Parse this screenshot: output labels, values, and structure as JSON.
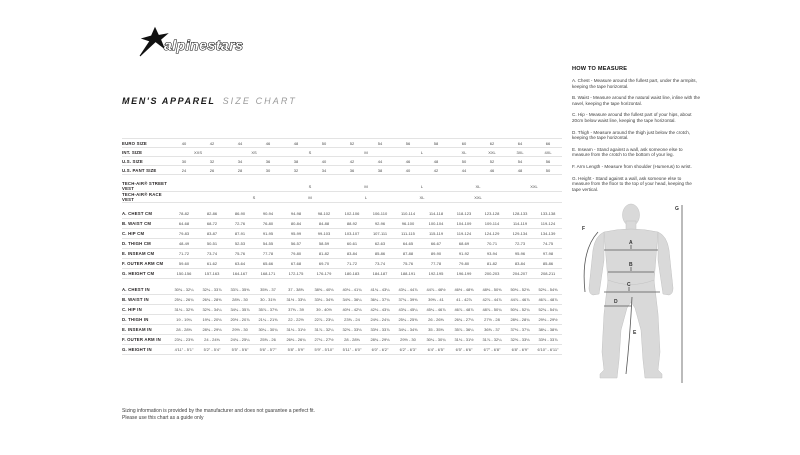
{
  "logo": {
    "name": "alpinestars"
  },
  "title": {
    "main": "MEN'S APPAREL",
    "sub": "SIZE CHART"
  },
  "table": {
    "sections": [
      {
        "name": "sizes",
        "rows": [
          {
            "label": "EURO SIZE",
            "cells": [
              [
                "40"
              ],
              [
                "42"
              ],
              [
                "44"
              ],
              [
                "46"
              ],
              [
                "48"
              ],
              [
                "50"
              ],
              [
                "52"
              ],
              [
                "54"
              ],
              [
                "56"
              ],
              [
                "58"
              ],
              [
                "60"
              ],
              [
                "62"
              ],
              [
                "64"
              ],
              [
                "66"
              ]
            ]
          },
          {
            "label": "INT. SIZE",
            "cells": [
              [
                "XXS",
                2
              ],
              [
                "XS",
                2
              ],
              [
                "S",
                2
              ],
              [
                "M",
                2
              ],
              [
                "L",
                2
              ],
              [
                "XL"
              ],
              [
                "XXL"
              ],
              [
                "3XL"
              ],
              [
                "4XL"
              ]
            ]
          },
          {
            "label": "U.S. SIZE",
            "cells": [
              [
                "30"
              ],
              [
                "32"
              ],
              [
                "34"
              ],
              [
                "36"
              ],
              [
                "38"
              ],
              [
                "40"
              ],
              [
                "42"
              ],
              [
                "44"
              ],
              [
                "46"
              ],
              [
                "48"
              ],
              [
                "50"
              ],
              [
                "52"
              ],
              [
                "54"
              ],
              [
                "56"
              ]
            ]
          },
          {
            "label": "U.S. PANT SIZE",
            "cells": [
              [
                "24"
              ],
              [
                "26"
              ],
              [
                "28"
              ],
              [
                "30"
              ],
              [
                "32"
              ],
              [
                "34"
              ],
              [
                "36"
              ],
              [
                "38"
              ],
              [
                "40"
              ],
              [
                "42"
              ],
              [
                "44"
              ],
              [
                "46"
              ],
              [
                "48"
              ],
              [
                "50"
              ]
            ]
          }
        ]
      },
      {
        "name": "vests",
        "rows": [
          {
            "label": "TECH-AIR® STREET VEST",
            "cells": [
              [
                "",
                4
              ],
              [
                "S",
                2
              ],
              [
                "M",
                2
              ],
              [
                "L",
                2
              ],
              [
                "XL",
                2
              ],
              [
                "XXL",
                2
              ]
            ]
          },
          {
            "label": "TECH-AIR® RACE VEST",
            "cells": [
              [
                "",
                2
              ],
              [
                "S",
                2
              ],
              [
                "M",
                2
              ],
              [
                "L",
                2
              ],
              [
                "XL",
                2
              ],
              [
                "XXL",
                2
              ],
              [
                "",
                2
              ]
            ]
          }
        ]
      },
      {
        "name": "cm",
        "rows": [
          {
            "label": "A. CHEST CM",
            "cells": [
              [
                "78-82"
              ],
              [
                "82-86"
              ],
              [
                "86-90"
              ],
              [
                "90-94"
              ],
              [
                "94-98"
              ],
              [
                "98-102"
              ],
              [
                "102-106"
              ],
              [
                "106-110"
              ],
              [
                "110-114"
              ],
              [
                "114-118"
              ],
              [
                "118-123"
              ],
              [
                "123-128"
              ],
              [
                "128-133"
              ],
              [
                "133-138"
              ]
            ]
          },
          {
            "label": "B. WAIST CM",
            "cells": [
              [
                "64-68"
              ],
              [
                "68-72"
              ],
              [
                "72-76"
              ],
              [
                "76-80"
              ],
              [
                "80-84"
              ],
              [
                "84-88"
              ],
              [
                "88-92"
              ],
              [
                "92-96"
              ],
              [
                "96-100"
              ],
              [
                "100-104"
              ],
              [
                "104-109"
              ],
              [
                "109-114"
              ],
              [
                "114-119"
              ],
              [
                "119-124"
              ]
            ]
          },
          {
            "label": "C. HIP CM",
            "cells": [
              [
                "79-83"
              ],
              [
                "83-87"
              ],
              [
                "87-91"
              ],
              [
                "91-95"
              ],
              [
                "95-99"
              ],
              [
                "99-103"
              ],
              [
                "103-107"
              ],
              [
                "107-111"
              ],
              [
                "111-115"
              ],
              [
                "115-119"
              ],
              [
                "119-124"
              ],
              [
                "124-129"
              ],
              [
                "129-134"
              ],
              [
                "134-139"
              ]
            ]
          },
          {
            "label": "D. THIGH CM",
            "cells": [
              [
                "48-49"
              ],
              [
                "50-51"
              ],
              [
                "52-53"
              ],
              [
                "54-55"
              ],
              [
                "56-57"
              ],
              [
                "58-59"
              ],
              [
                "60-61"
              ],
              [
                "62-63"
              ],
              [
                "64-65"
              ],
              [
                "66-67"
              ],
              [
                "68-69"
              ],
              [
                "70-71"
              ],
              [
                "72-73"
              ],
              [
                "74-75"
              ]
            ]
          },
          {
            "label": "E. INSEAM CM",
            "cells": [
              [
                "71-72"
              ],
              [
                "73-74"
              ],
              [
                "75-76"
              ],
              [
                "77-78"
              ],
              [
                "79-80"
              ],
              [
                "81-82"
              ],
              [
                "83-84"
              ],
              [
                "85-86"
              ],
              [
                "87-88"
              ],
              [
                "89-90"
              ],
              [
                "91-92"
              ],
              [
                "93-94"
              ],
              [
                "95-96"
              ],
              [
                "97-98"
              ]
            ]
          },
          {
            "label": "F. OUTER ARM CM",
            "cells": [
              [
                "59-60"
              ],
              [
                "61-62"
              ],
              [
                "63-64"
              ],
              [
                "65-66"
              ],
              [
                "67-68"
              ],
              [
                "69-70"
              ],
              [
                "71-72"
              ],
              [
                "73-74"
              ],
              [
                "75-76"
              ],
              [
                "77-78"
              ],
              [
                "79-80"
              ],
              [
                "81-82"
              ],
              [
                "83-84"
              ],
              [
                "85-86"
              ]
            ]
          },
          {
            "label": "G. HEIGHT CM",
            "cells": [
              [
                "150-156"
              ],
              [
                "157-163"
              ],
              [
                "164-167"
              ],
              [
                "168-171"
              ],
              [
                "172-175"
              ],
              [
                "176-179"
              ],
              [
                "180-183"
              ],
              [
                "184-187"
              ],
              [
                "188-191"
              ],
              [
                "192-195"
              ],
              [
                "196-199"
              ],
              [
                "200-203"
              ],
              [
                "204-207"
              ],
              [
                "208-211"
              ]
            ]
          }
        ]
      },
      {
        "name": "in",
        "rows": [
          {
            "label": "A. CHEST IN",
            "cells": [
              [
                "30¾ - 32¼"
              ],
              [
                "32¼ - 33⅞"
              ],
              [
                "33⅞ - 35⅜"
              ],
              [
                "35⅜ - 37"
              ],
              [
                "37 - 38⅝"
              ],
              [
                "38⅝ - 40⅛"
              ],
              [
                "40⅛ - 41¾"
              ],
              [
                "41¾ - 43¼"
              ],
              [
                "43¼ - 44⅞"
              ],
              [
                "44⅞ - 46½"
              ],
              [
                "46½ - 48⅜"
              ],
              [
                "48⅜ - 50⅜"
              ],
              [
                "50⅜ - 52⅜"
              ],
              [
                "52⅜ - 54⅜"
              ]
            ]
          },
          {
            "label": "B. WAIST IN",
            "cells": [
              [
                "25¼ - 26¾"
              ],
              [
                "26¾ - 28⅜"
              ],
              [
                "28⅜ - 30"
              ],
              [
                "30 - 31½"
              ],
              [
                "31½ - 33⅛"
              ],
              [
                "33⅛ - 34⅝"
              ],
              [
                "34⅝ - 36¼"
              ],
              [
                "36¼ - 37¾"
              ],
              [
                "37¾ - 39⅜"
              ],
              [
                "39⅜ - 41"
              ],
              [
                "41 - 42⅞"
              ],
              [
                "42⅞ - 44⅞"
              ],
              [
                "44⅞ - 46⅞"
              ],
              [
                "46⅞ - 48⅞"
              ]
            ]
          },
          {
            "label": "C. HIP IN",
            "cells": [
              [
                "31⅛ - 32⅝"
              ],
              [
                "32⅝ - 34¼"
              ],
              [
                "34¼ - 35⅞"
              ],
              [
                "35⅞ - 37⅜"
              ],
              [
                "37⅜ - 39"
              ],
              [
                "39 - 40½"
              ],
              [
                "40½ - 42⅛"
              ],
              [
                "42⅛ - 43¾"
              ],
              [
                "43¾ - 45¼"
              ],
              [
                "45¼ - 46⅞"
              ],
              [
                "46⅞ - 48⅞"
              ],
              [
                "48⅞ - 50¾"
              ],
              [
                "50¾ - 52¾"
              ],
              [
                "52¾ - 54¾"
              ]
            ]
          },
          {
            "label": "D. THIGH IN",
            "cells": [
              [
                "19 - 19¼"
              ],
              [
                "19¾ - 20⅛"
              ],
              [
                "20½ - 20⅞"
              ],
              [
                "21¼ - 21⅝"
              ],
              [
                "22 - 22½"
              ],
              [
                "22⅞ - 23¼"
              ],
              [
                "23⅝ - 24"
              ],
              [
                "24⅜ - 24¾"
              ],
              [
                "25¼ - 25⅝"
              ],
              [
                "26 - 26⅜"
              ],
              [
                "26¾ - 27⅛"
              ],
              [
                "27½ - 28"
              ],
              [
                "28⅜ - 28¾"
              ],
              [
                "29⅛ - 29½"
              ]
            ]
          },
          {
            "label": "E. INSEAM IN",
            "cells": [
              [
                "28 - 28⅜"
              ],
              [
                "28¾ - 29⅛"
              ],
              [
                "29½ - 30"
              ],
              [
                "30¼ - 30¾"
              ],
              [
                "31⅛ - 31½"
              ],
              [
                "31⅞ - 32¼"
              ],
              [
                "32⅝ - 33⅛"
              ],
              [
                "33½ - 33⅞"
              ],
              [
                "34¼ - 34⅝"
              ],
              [
                "35 - 35⅜"
              ],
              [
                "35⅞ - 36¼"
              ],
              [
                "36⅝ - 37"
              ],
              [
                "37⅜ - 37¾"
              ],
              [
                "38¼ - 38⅝"
              ]
            ]
          },
          {
            "label": "F. OUTER ARM IN",
            "cells": [
              [
                "23¼ - 23⅝"
              ],
              [
                "24 - 24⅜"
              ],
              [
                "24¾ - 25¼"
              ],
              [
                "25⅝ - 26"
              ],
              [
                "26⅜ - 26¾"
              ],
              [
                "27⅛ - 27½"
              ],
              [
                "28 - 28⅜"
              ],
              [
                "28¾ - 29⅛"
              ],
              [
                "29½ - 30"
              ],
              [
                "30¼ - 30¾"
              ],
              [
                "31⅛ - 31½"
              ],
              [
                "31⅞ - 32¼"
              ],
              [
                "32⅝ - 33⅛"
              ],
              [
                "33½ - 33⅞"
              ]
            ]
          },
          {
            "label": "G. HEIGHT IN",
            "cells": [
              [
                "4'11\" - 5'1\""
              ],
              [
                "5'2\" - 5'4\""
              ],
              [
                "5'5\" - 5'6\""
              ],
              [
                "5'6\" - 5'7\""
              ],
              [
                "5'8\" - 5'9\""
              ],
              [
                "5'9\" - 5'10\""
              ],
              [
                "5'11\" - 6'0\""
              ],
              [
                "6'0\" - 6'2\""
              ],
              [
                "6'2\" - 6'3\""
              ],
              [
                "6'4\" - 6'5\""
              ],
              [
                "6'5\" - 6'6\""
              ],
              [
                "6'7\" - 6'8\""
              ],
              [
                "6'8\" - 6'9\""
              ],
              [
                "6'10\" - 6'11\""
              ]
            ]
          }
        ]
      }
    ]
  },
  "howto": {
    "heading": "HOW TO MEASURE",
    "items": [
      "A. Chest - Measure around the fullest part, under the armpits, keeping the tape horizontal.",
      "B. Waist - Measure around the natural waist line, inline with the navel, keeping the tape horizontal.",
      "C. Hip - Measure around the fullest part of your hips, about 20cm below waist line, keeping the tape horizontal.",
      "D. Thigh - Measure around the thigh just below the crotch, keeping the tape horizontal.",
      "E. Inseam - Stand against a wall, ask someone else to measure from the crotch to the bottom of your leg.",
      "F. Arm Length - Measure from shoulder (Humerus) to wrist.",
      "G. Height - Stand against a wall, ask someone else to measure from the floor to the top of your head, keeping the tape vertical."
    ]
  },
  "figure": {
    "labels": {
      "a": "A",
      "b": "B",
      "c": "C",
      "d": "D",
      "e": "E",
      "f": "F",
      "g": "G"
    }
  },
  "footer": {
    "line1": "Sizing information is provided by the manufacturer and does not guarantee a perfect fit.",
    "line2": "Please use this chart as a guide only"
  },
  "colors": {
    "text": "#231f20",
    "rule": "#e3e3e3",
    "silhouette": "#d9d9d9"
  }
}
